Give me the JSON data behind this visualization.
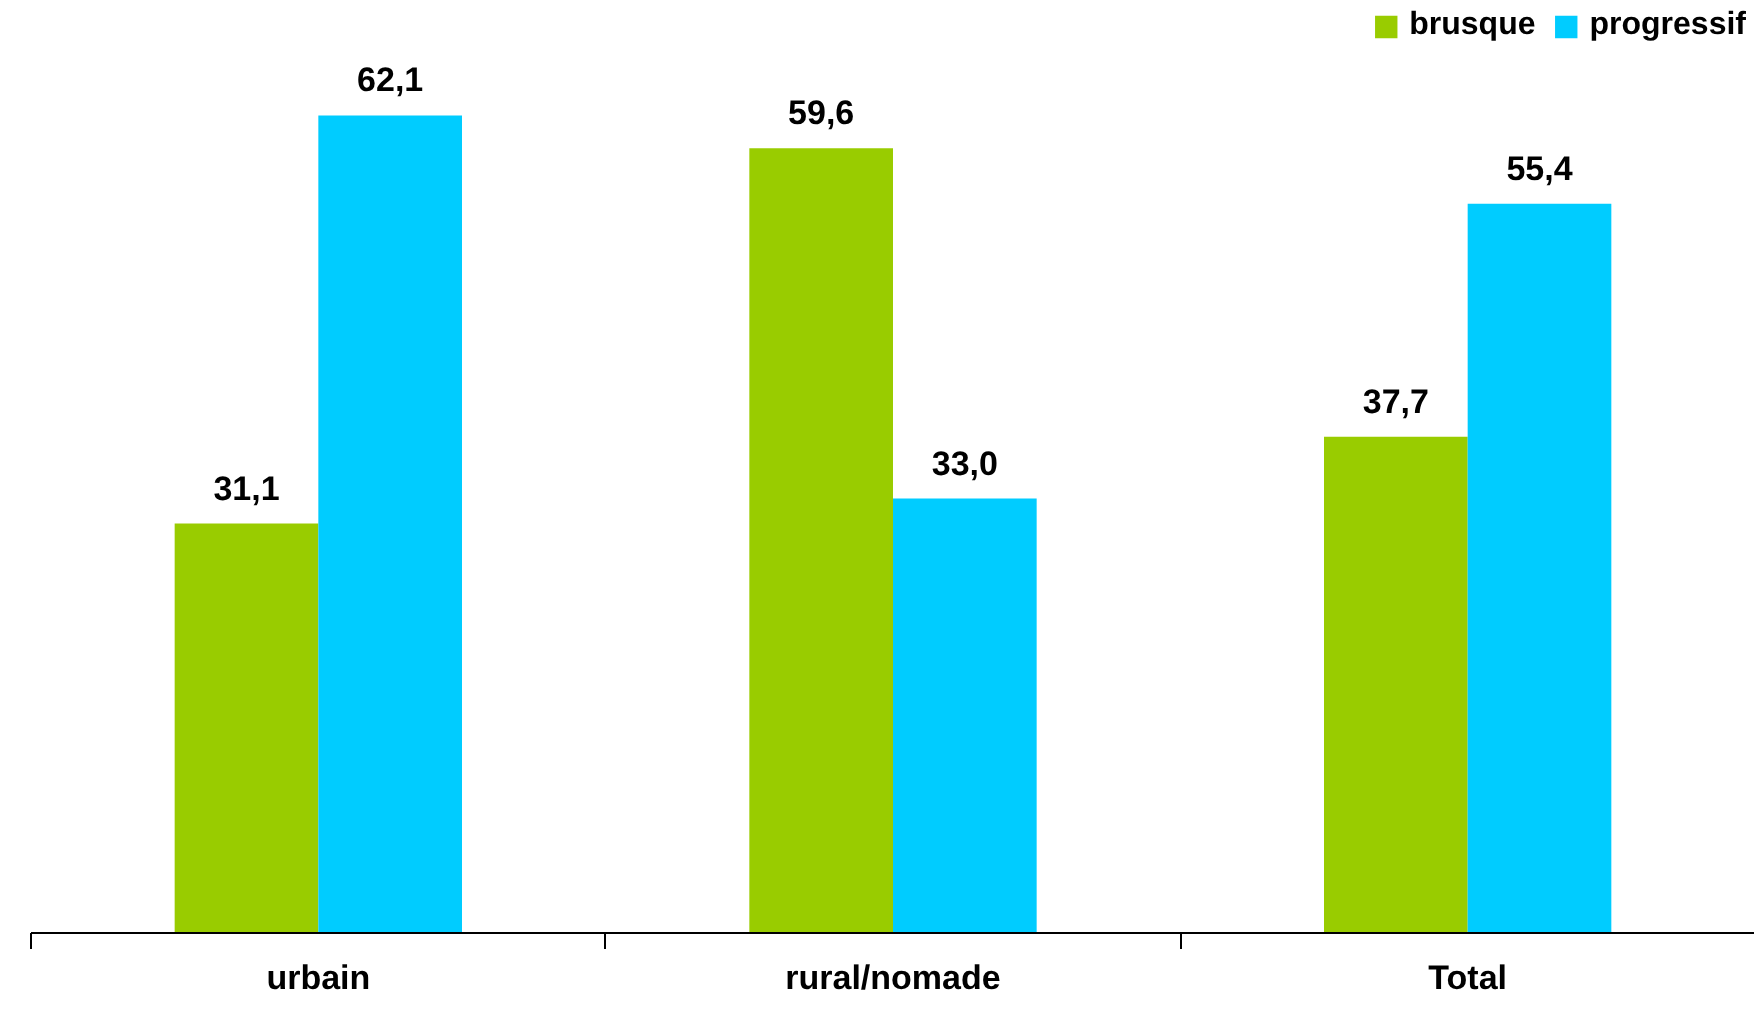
{
  "chart_data": {
    "type": "bar",
    "categories": [
      "urbain",
      "rural/nomade",
      "Total"
    ],
    "series": [
      {
        "name": "brusque",
        "color": "#99cc00",
        "values": [
          31.1,
          59.6,
          37.7
        ],
        "value_labels": [
          "31,1",
          "59,6",
          "37,7"
        ]
      },
      {
        "name": "progressif",
        "color": "#00ccff",
        "values": [
          62.1,
          33.0,
          55.4
        ],
        "value_labels": [
          "62,1",
          "33,0",
          "55,4"
        ]
      }
    ],
    "legend": "top right",
    "grid": false,
    "tick_labels": "x"
  }
}
